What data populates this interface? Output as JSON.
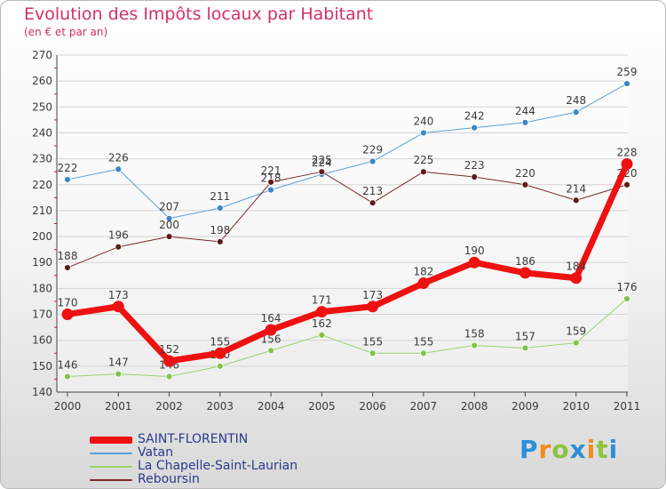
{
  "header": {
    "title": "Evolution des Impôts locaux par Habitant",
    "subtitle": "(en € et par an)"
  },
  "logo": {
    "text": "Proxiti",
    "letters": [
      {
        "ch": "P",
        "color": "#2e8fd8"
      },
      {
        "ch": "r",
        "color": "#f08c1e"
      },
      {
        "ch": "o",
        "color": "#8bc43f"
      },
      {
        "ch": "x",
        "color": "#2e8fd8"
      },
      {
        "ch": "i",
        "color": "#f08c1e"
      },
      {
        "ch": "t",
        "color": "#8bc43f"
      },
      {
        "ch": "i",
        "color": "#2e8fd8"
      }
    ]
  },
  "chart_data": {
    "type": "line",
    "title": "Evolution des Impôts locaux par Habitant",
    "subtitle": "(en € et par an)",
    "x": [
      "2000",
      "2001",
      "2002",
      "2003",
      "2004",
      "2005",
      "2006",
      "2007",
      "2008",
      "2009",
      "2010",
      "2011"
    ],
    "ylim": [
      140,
      270
    ],
    "yticks": [
      140,
      150,
      160,
      170,
      180,
      190,
      200,
      210,
      220,
      230,
      240,
      250,
      260,
      270
    ],
    "grid": "horizontal",
    "legend_position": "bottom",
    "series": [
      {
        "name": "Vatan",
        "color": "#5b9fd6",
        "dot": "#3d86c6",
        "width": 1,
        "values": [
          222,
          226,
          207,
          211,
          218,
          224,
          229,
          240,
          242,
          244,
          248,
          259
        ]
      },
      {
        "name": "Reboursin",
        "color": "#7a2828",
        "dot": "#5e1a1a",
        "width": 1,
        "values": [
          188,
          196,
          200,
          198,
          221,
          225,
          213,
          225,
          223,
          220,
          214,
          220
        ]
      },
      {
        "name": "La Chapelle-Saint-Laurian",
        "color": "#99d36a",
        "dot": "#7fc44a",
        "width": 1,
        "values": [
          146,
          147,
          146,
          150,
          156,
          162,
          155,
          155,
          158,
          157,
          159,
          176
        ]
      },
      {
        "name": "SAINT-FLORENTIN",
        "color": "#ee1111",
        "dot": "#ee1111",
        "width": 7,
        "values": [
          170,
          173,
          152,
          155,
          164,
          171,
          173,
          182,
          190,
          186,
          184,
          228
        ]
      }
    ],
    "legend": [
      {
        "name": "SAINT-FLORENTIN",
        "color": "#ee1111",
        "thickness": 8
      },
      {
        "name": "Vatan",
        "color": "#5b9fd6",
        "thickness": 2
      },
      {
        "name": "La Chapelle-Saint-Laurian",
        "color": "#99d36a",
        "thickness": 2
      },
      {
        "name": "Reboursin",
        "color": "#7a2828",
        "thickness": 2
      }
    ],
    "label_color": "#3a3a3a",
    "legend_text_color": "#2a3a8c"
  }
}
